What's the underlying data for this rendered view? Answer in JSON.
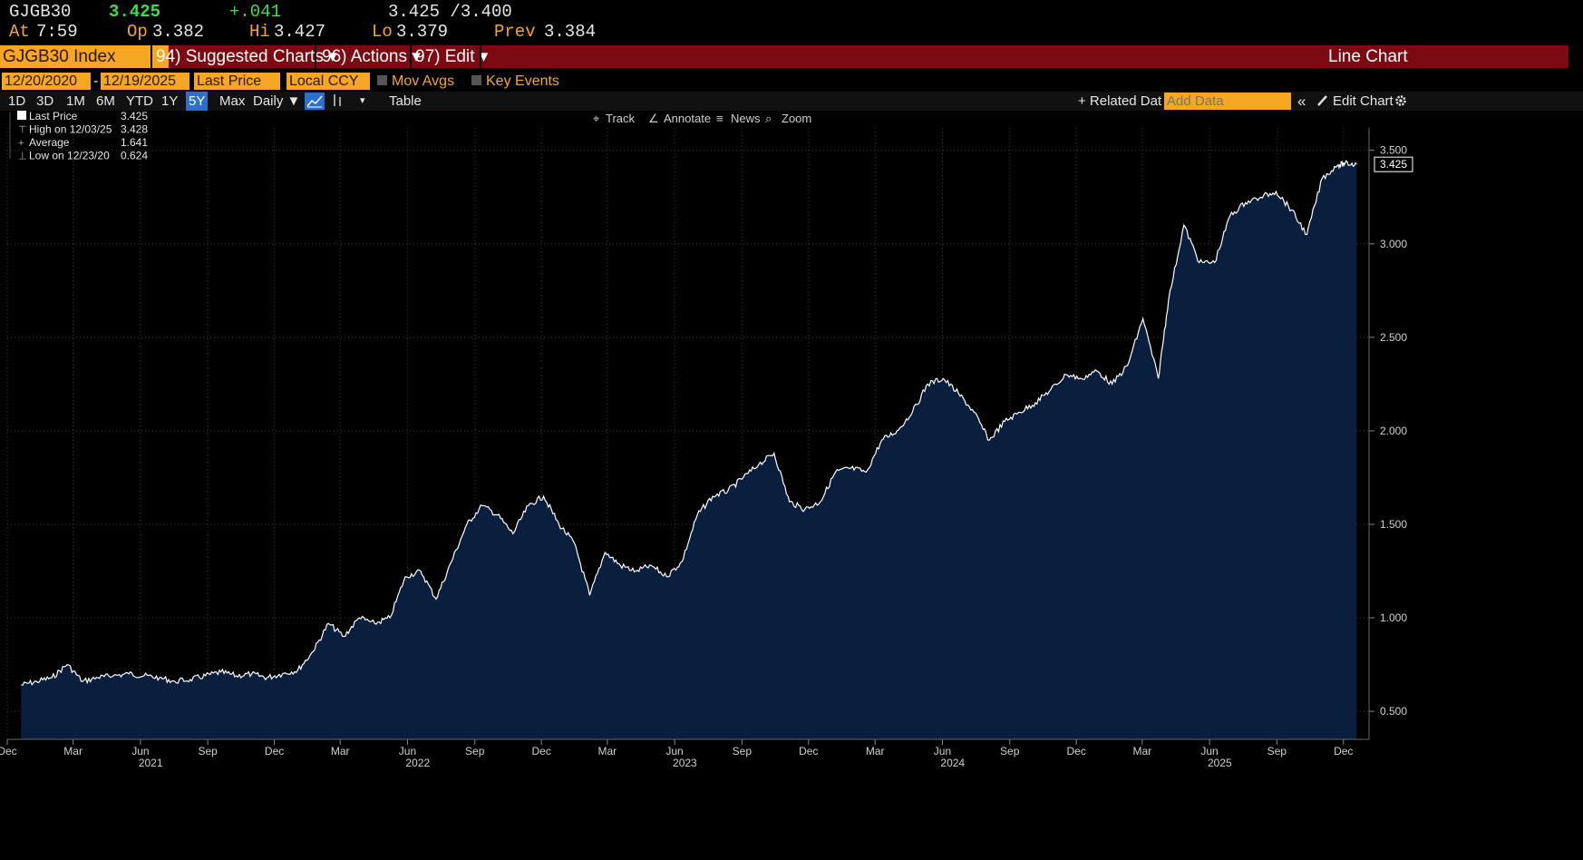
{
  "quote": {
    "ticker": "GJGB30",
    "last": "3.425",
    "change": "+.041",
    "bid_ask": "3.425 /3.400",
    "at_label": "At",
    "at_value": "7:59",
    "op_label": "Op",
    "op_value": "3.382",
    "hi_label": "Hi",
    "hi_value": "3.427",
    "lo_label": "Lo",
    "lo_value": "3.379",
    "prev_label": "Prev",
    "prev_value": "3.384"
  },
  "menubar": {
    "security": "GJGB30 Index",
    "suggested": "94) Suggested Charts ▾",
    "actions": "96) Actions ▾",
    "edit": "97) Edit ▾",
    "chart_type": "Line Chart"
  },
  "controls": {
    "start_date": "12/20/2020",
    "dash": "-",
    "end_date": "12/19/2025",
    "field": "Last Price",
    "currency": "Local CCY",
    "mov_avgs": "Mov Avgs",
    "key_events": "Key Events"
  },
  "toolbar": {
    "periods": [
      "1D",
      "3D",
      "1M",
      "6M",
      "YTD",
      "1Y",
      "5Y",
      "Max"
    ],
    "selected_period": "5Y",
    "frequency": "Daily ▼",
    "table": "Table",
    "related": "+ Related Dat",
    "add_data_placeholder": "Add Data",
    "edit_chart": "Edit Chart",
    "collapse": "«"
  },
  "chart_tools": {
    "track": "Track",
    "annotate": "Annotate",
    "news": "News",
    "zoom": "Zoom"
  },
  "colors": {
    "background": "#000000",
    "area_fill": "#0a1f3d",
    "line": "#ffffff",
    "accent_orange": "#f5a623",
    "menubar_red": "#7c0a12",
    "positive": "#3ddc4b"
  },
  "chart_data": {
    "type": "area",
    "legend": [
      {
        "label": "Last Price",
        "value": "3.425"
      },
      {
        "label": "High on 12/03/25",
        "value": "3.428"
      },
      {
        "label": "Average",
        "value": "1.641"
      },
      {
        "label": "Low on 12/23/20",
        "value": "0.624"
      }
    ],
    "legend_position": "top-left",
    "last_value_label": "3.425",
    "ylim": [
      0.35,
      3.62
    ],
    "y_ticks": [
      {
        "v": 0.5,
        "label": "0.500"
      },
      {
        "v": 1.0,
        "label": "1.000"
      },
      {
        "v": 1.5,
        "label": "1.500"
      },
      {
        "v": 2.0,
        "label": "2.000"
      },
      {
        "v": 2.5,
        "label": "2.500"
      },
      {
        "v": 3.0,
        "label": "3.000"
      },
      {
        "v": 3.5,
        "label": "3.500"
      }
    ],
    "x_range": [
      "2020-12-01",
      "2026-01-05"
    ],
    "month_ticks": [
      {
        "date": "2020-12-01",
        "label": "Dec"
      },
      {
        "date": "2021-03-01",
        "label": "Mar"
      },
      {
        "date": "2021-06-01",
        "label": "Jun"
      },
      {
        "date": "2021-09-01",
        "label": "Sep"
      },
      {
        "date": "2021-12-01",
        "label": "Dec"
      },
      {
        "date": "2022-03-01",
        "label": "Mar"
      },
      {
        "date": "2022-06-01",
        "label": "Jun"
      },
      {
        "date": "2022-09-01",
        "label": "Sep"
      },
      {
        "date": "2022-12-01",
        "label": "Dec"
      },
      {
        "date": "2023-03-01",
        "label": "Mar"
      },
      {
        "date": "2023-06-01",
        "label": "Jun"
      },
      {
        "date": "2023-09-01",
        "label": "Sep"
      },
      {
        "date": "2023-12-01",
        "label": "Dec"
      },
      {
        "date": "2024-03-01",
        "label": "Mar"
      },
      {
        "date": "2024-06-01",
        "label": "Jun"
      },
      {
        "date": "2024-09-01",
        "label": "Sep"
      },
      {
        "date": "2024-12-01",
        "label": "Dec"
      },
      {
        "date": "2025-03-01",
        "label": "Mar"
      },
      {
        "date": "2025-06-01",
        "label": "Jun"
      },
      {
        "date": "2025-09-01",
        "label": "Sep"
      },
      {
        "date": "2025-12-01",
        "label": "Dec"
      }
    ],
    "year_ticks": [
      {
        "date": "2021-06-15",
        "label": "2021"
      },
      {
        "date": "2022-06-15",
        "label": "2022"
      },
      {
        "date": "2023-06-15",
        "label": "2023"
      },
      {
        "date": "2024-06-15",
        "label": "2024"
      },
      {
        "date": "2025-06-15",
        "label": "2025"
      }
    ],
    "series": [
      {
        "x": [
          "2020-12-20",
          "2021-01-10",
          "2021-01-31",
          "2021-02-21",
          "2021-03-14",
          "2021-04-04",
          "2021-04-25",
          "2021-05-16",
          "2021-06-06",
          "2021-06-27",
          "2021-07-18",
          "2021-08-08",
          "2021-08-29",
          "2021-09-19",
          "2021-10-10",
          "2021-10-31",
          "2021-11-21",
          "2021-12-12",
          "2022-01-02",
          "2022-01-23",
          "2022-02-13",
          "2022-03-06",
          "2022-03-27",
          "2022-04-17",
          "2022-05-08",
          "2022-05-29",
          "2022-06-19",
          "2022-07-10",
          "2022-07-31",
          "2022-08-21",
          "2022-09-11",
          "2022-10-02",
          "2022-10-23",
          "2022-11-13",
          "2022-12-04",
          "2022-12-25",
          "2023-01-15",
          "2023-02-05",
          "2023-02-26",
          "2023-03-19",
          "2023-04-09",
          "2023-04-30",
          "2023-05-21",
          "2023-06-11",
          "2023-07-02",
          "2023-07-23",
          "2023-08-13",
          "2023-09-03",
          "2023-09-24",
          "2023-10-15",
          "2023-11-05",
          "2023-11-26",
          "2023-12-17",
          "2024-01-07",
          "2024-01-28",
          "2024-02-18",
          "2024-03-10",
          "2024-03-31",
          "2024-04-21",
          "2024-05-12",
          "2024-06-02",
          "2024-06-23",
          "2024-07-14",
          "2024-08-04",
          "2024-08-25",
          "2024-09-15",
          "2024-10-06",
          "2024-10-27",
          "2024-11-17",
          "2024-12-08",
          "2024-12-29",
          "2025-01-19",
          "2025-02-09",
          "2025-03-02",
          "2025-03-23",
          "2025-04-06",
          "2025-04-27",
          "2025-05-18",
          "2025-06-08",
          "2025-06-29",
          "2025-07-20",
          "2025-08-10",
          "2025-08-31",
          "2025-09-21",
          "2025-10-12",
          "2025-11-02",
          "2025-11-23",
          "2025-12-03",
          "2025-12-19"
        ],
        "values": [
          0.64,
          0.66,
          0.68,
          0.75,
          0.66,
          0.68,
          0.69,
          0.7,
          0.69,
          0.68,
          0.66,
          0.67,
          0.69,
          0.71,
          0.69,
          0.7,
          0.68,
          0.7,
          0.72,
          0.82,
          0.97,
          0.9,
          1.0,
          0.97,
          1.0,
          1.22,
          1.25,
          1.1,
          1.3,
          1.5,
          1.6,
          1.55,
          1.45,
          1.6,
          1.65,
          1.5,
          1.4,
          1.12,
          1.35,
          1.28,
          1.25,
          1.28,
          1.22,
          1.3,
          1.55,
          1.65,
          1.68,
          1.75,
          1.82,
          1.88,
          1.62,
          1.58,
          1.62,
          1.78,
          1.8,
          1.78,
          1.95,
          2.0,
          2.1,
          2.25,
          2.28,
          2.2,
          2.1,
          1.95,
          2.05,
          2.1,
          2.15,
          2.22,
          2.3,
          2.28,
          2.32,
          2.25,
          2.35,
          2.6,
          2.28,
          2.7,
          3.1,
          2.9,
          2.9,
          3.15,
          3.22,
          3.25,
          3.28,
          3.18,
          3.05,
          3.35,
          3.42,
          3.43,
          3.425
        ]
      }
    ]
  }
}
